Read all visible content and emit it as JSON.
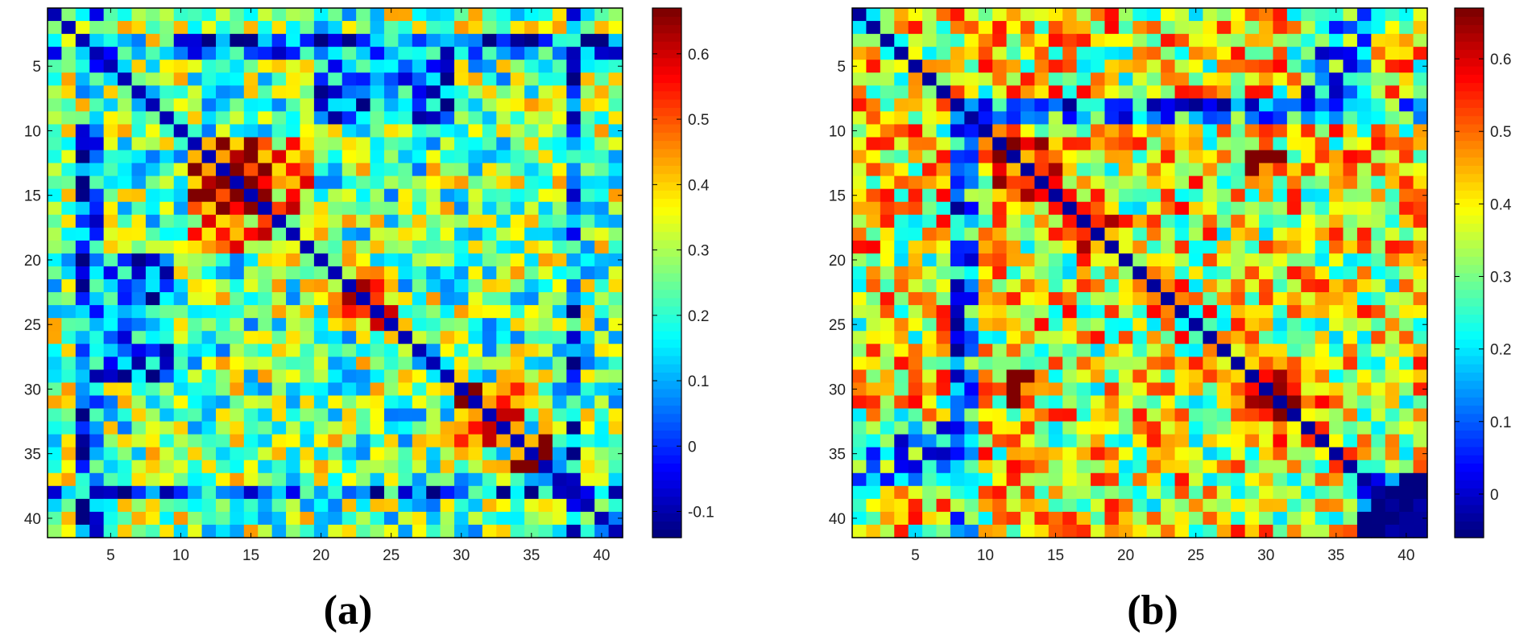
{
  "chart_data": [
    {
      "type": "heatmap",
      "panel_label": "(a)",
      "rows": 41,
      "cols": 41,
      "x_ticks": [
        5,
        10,
        15,
        20,
        25,
        30,
        35,
        40
      ],
      "y_ticks": [
        5,
        10,
        15,
        20,
        25,
        30,
        35,
        40
      ],
      "colorbar": {
        "min": -0.14,
        "max": 0.67,
        "ticks": [
          -0.1,
          0,
          0.1,
          0.2,
          0.3,
          0.4,
          0.5,
          0.6
        ],
        "tick_labels": [
          "-0.1",
          "0",
          "0.1",
          "0.2",
          "0.3",
          "0.4",
          "0.5",
          "0.6"
        ],
        "colormap": "jet"
      },
      "diagonal_value": -0.1,
      "base_value": 0.25,
      "noise_amplitude": 0.2,
      "seed": 1337,
      "blocks": [
        {
          "rows": [
            11,
            16
          ],
          "cols": [
            11,
            16
          ],
          "value": 0.58
        },
        {
          "rows": [
            21,
            25
          ],
          "cols": [
            21,
            25
          ],
          "value": 0.5
        },
        {
          "rows": [
            30,
            33
          ],
          "cols": [
            30,
            34
          ],
          "value": 0.58
        },
        {
          "rows": [
            34,
            36
          ],
          "cols": [
            34,
            36
          ],
          "value": 0.55
        },
        {
          "rows": [
            3,
            3
          ],
          "cols": [
            10,
            40
          ],
          "value": 0.0
        },
        {
          "rows": [
            38,
            38
          ],
          "cols": [
            1,
            37
          ],
          "value": 0.02
        },
        {
          "rows": [
            20,
            29
          ],
          "cols": [
            3,
            9
          ],
          "value": 0.05
        },
        {
          "rows": [
            1,
            41
          ],
          "cols": [
            4,
            4
          ],
          "value": 0.08
        },
        {
          "rows": [
            1,
            41
          ],
          "cols": [
            38,
            38
          ],
          "value": 0.05
        },
        {
          "rows": [
            11,
            18
          ],
          "cols": [
            17,
            19
          ],
          "value": 0.42
        },
        {
          "rows": [
            18,
            19
          ],
          "cols": [
            11,
            16
          ],
          "value": 0.45
        }
      ]
    },
    {
      "type": "heatmap",
      "panel_label": "(b)",
      "rows": 41,
      "cols": 41,
      "x_ticks": [
        5,
        10,
        15,
        20,
        25,
        30,
        35,
        40
      ],
      "y_ticks": [
        5,
        10,
        15,
        20,
        25,
        30,
        35,
        40
      ],
      "colorbar": {
        "min": -0.06,
        "max": 0.67,
        "ticks": [
          0,
          0.1,
          0.2,
          0.3,
          0.4,
          0.5,
          0.6
        ],
        "tick_labels": [
          "0",
          "0.1",
          "0.2",
          "0.3",
          "0.4",
          "0.5",
          "0.6"
        ],
        "colormap": "jet"
      },
      "diagonal_value": -0.04,
      "base_value": 0.38,
      "noise_amplitude": 0.2,
      "seed": 4242,
      "blocks": [
        {
          "rows": [
            11,
            15
          ],
          "cols": [
            11,
            15
          ],
          "value": 0.58
        },
        {
          "rows": [
            17,
            19
          ],
          "cols": [
            17,
            19
          ],
          "value": 0.6
        },
        {
          "rows": [
            29,
            32
          ],
          "cols": [
            29,
            32
          ],
          "value": 0.58
        },
        {
          "rows": [
            12,
            13
          ],
          "cols": [
            29,
            30
          ],
          "value": 0.65
        },
        {
          "rows": [
            29,
            31
          ],
          "cols": [
            12,
            13
          ],
          "value": 0.65
        },
        {
          "rows": [
            8,
            9
          ],
          "cols": [
            8,
            40
          ],
          "value": 0.12
        },
        {
          "rows": [
            9,
            41
          ],
          "cols": [
            8,
            9
          ],
          "value": 0.15
        },
        {
          "rows": [
            38,
            41
          ],
          "cols": [
            37,
            41
          ],
          "value": -0.02
        },
        {
          "rows": [
            35,
            37
          ],
          "cols": [
            3,
            7
          ],
          "value": 0.08
        },
        {
          "rows": [
            1,
            7
          ],
          "cols": [
            33,
            37
          ],
          "value": 0.18
        }
      ]
    }
  ]
}
